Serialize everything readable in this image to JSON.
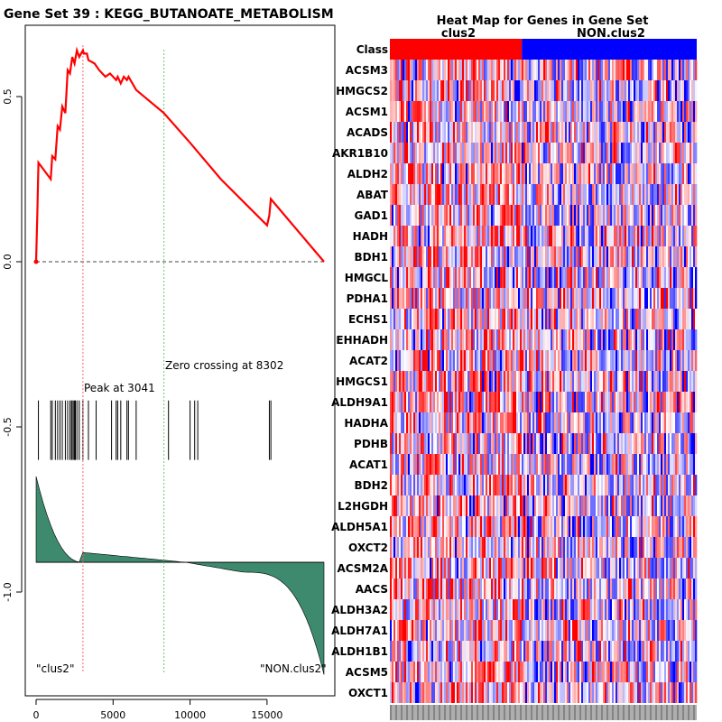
{
  "page_title": "Gene Set  39 : KEGG_BUTANOATE_METABOLISM",
  "chart_data": [
    {
      "type": "line",
      "name": "enrichment-score-plot",
      "title": "Gene Set  39 : KEGG_BUTANOATE_METABOLISM",
      "xlim": [
        0,
        18700
      ],
      "ylim": [
        -1.25,
        0.68
      ],
      "x_ticks": [
        0,
        5000,
        10000,
        15000
      ],
      "y_ticks": [
        -1.0,
        -0.5,
        0.0,
        0.5
      ],
      "x_tick_labels": [
        "0",
        "5000",
        "10000",
        "15000"
      ],
      "y_tick_labels": [
        "-1.0",
        "-0.5",
        "0.0",
        "0.5"
      ],
      "running_es": {
        "x": [
          0,
          80,
          150,
          950,
          1050,
          1250,
          1400,
          1550,
          1700,
          1900,
          2050,
          2200,
          2350,
          2500,
          2650,
          2800,
          3041,
          3100,
          3300,
          3400,
          3800,
          4100,
          4500,
          4800,
          5200,
          5300,
          5500,
          5700,
          5900,
          6000,
          6500,
          8302,
          10000,
          12000,
          15000,
          15150,
          15250,
          18700
        ],
        "y": [
          0.0,
          0.15,
          0.3,
          0.25,
          0.32,
          0.31,
          0.41,
          0.4,
          0.47,
          0.45,
          0.58,
          0.57,
          0.62,
          0.6,
          0.64,
          0.62,
          0.64,
          0.63,
          0.63,
          0.61,
          0.6,
          0.58,
          0.56,
          0.57,
          0.55,
          0.56,
          0.54,
          0.56,
          0.55,
          0.56,
          0.52,
          0.45,
          0.36,
          0.25,
          0.11,
          0.14,
          0.19,
          0.0
        ],
        "color": "#ff0000"
      },
      "baseline": 0.0,
      "peak": {
        "x": 3041,
        "label": "Peak at 3041",
        "color": "#ff6666"
      },
      "zero_crossing": {
        "x": 8302,
        "label": "Zero crossing at 8302",
        "color": "#66cc66"
      },
      "hits": [
        150,
        950,
        1050,
        1250,
        1400,
        1550,
        1700,
        1900,
        2050,
        2200,
        2300,
        2350,
        2450,
        2500,
        2550,
        2650,
        2800,
        3041,
        3400,
        3900,
        4900,
        5200,
        5300,
        5500,
        5900,
        6000,
        6500,
        8600,
        10000,
        10300,
        10500,
        15150,
        15250
      ],
      "hits_band": [
        -0.42,
        -0.6
      ],
      "ranked_metric": {
        "start": -0.65,
        "baseline": -0.91,
        "end": -1.25,
        "fill": "#3d8a6e"
      },
      "left_label": "\"clus2\"",
      "right_label": "\"NON.clus2\""
    },
    {
      "type": "heatmap",
      "name": "gene-heatmap",
      "title": "Heat Map for Genes in Gene Set",
      "class_label": "Class",
      "classes": [
        {
          "name": "clus2",
          "color": "#ff0000",
          "fraction": 0.43
        },
        {
          "name": "NON.clus2",
          "color": "#0000ff",
          "fraction": 0.57
        }
      ],
      "genes": [
        "ACSM3",
        "HMGCS2",
        "ACSM1",
        "ACADS",
        "AKR1B10",
        "ALDH2",
        "ABAT",
        "GAD1",
        "HADH",
        "BDH1",
        "HMGCL",
        "PDHA1",
        "ECHS1",
        "EHHADH",
        "ACAT2",
        "HMGCS1",
        "ALDH9A1",
        "HADHA",
        "PDHB",
        "ACAT1",
        "BDH2",
        "L2HGDH",
        "ALDH5A1",
        "OXCT2",
        "ACSM2A",
        "AACS",
        "ALDH3A2",
        "ALDH7A1",
        "ALDH1B1",
        "ACSM5",
        "OXCT1"
      ],
      "n_samples": 170,
      "colors": {
        "high": "#ff0000",
        "low": "#0000ff",
        "mid": "#ffffff"
      }
    }
  ]
}
